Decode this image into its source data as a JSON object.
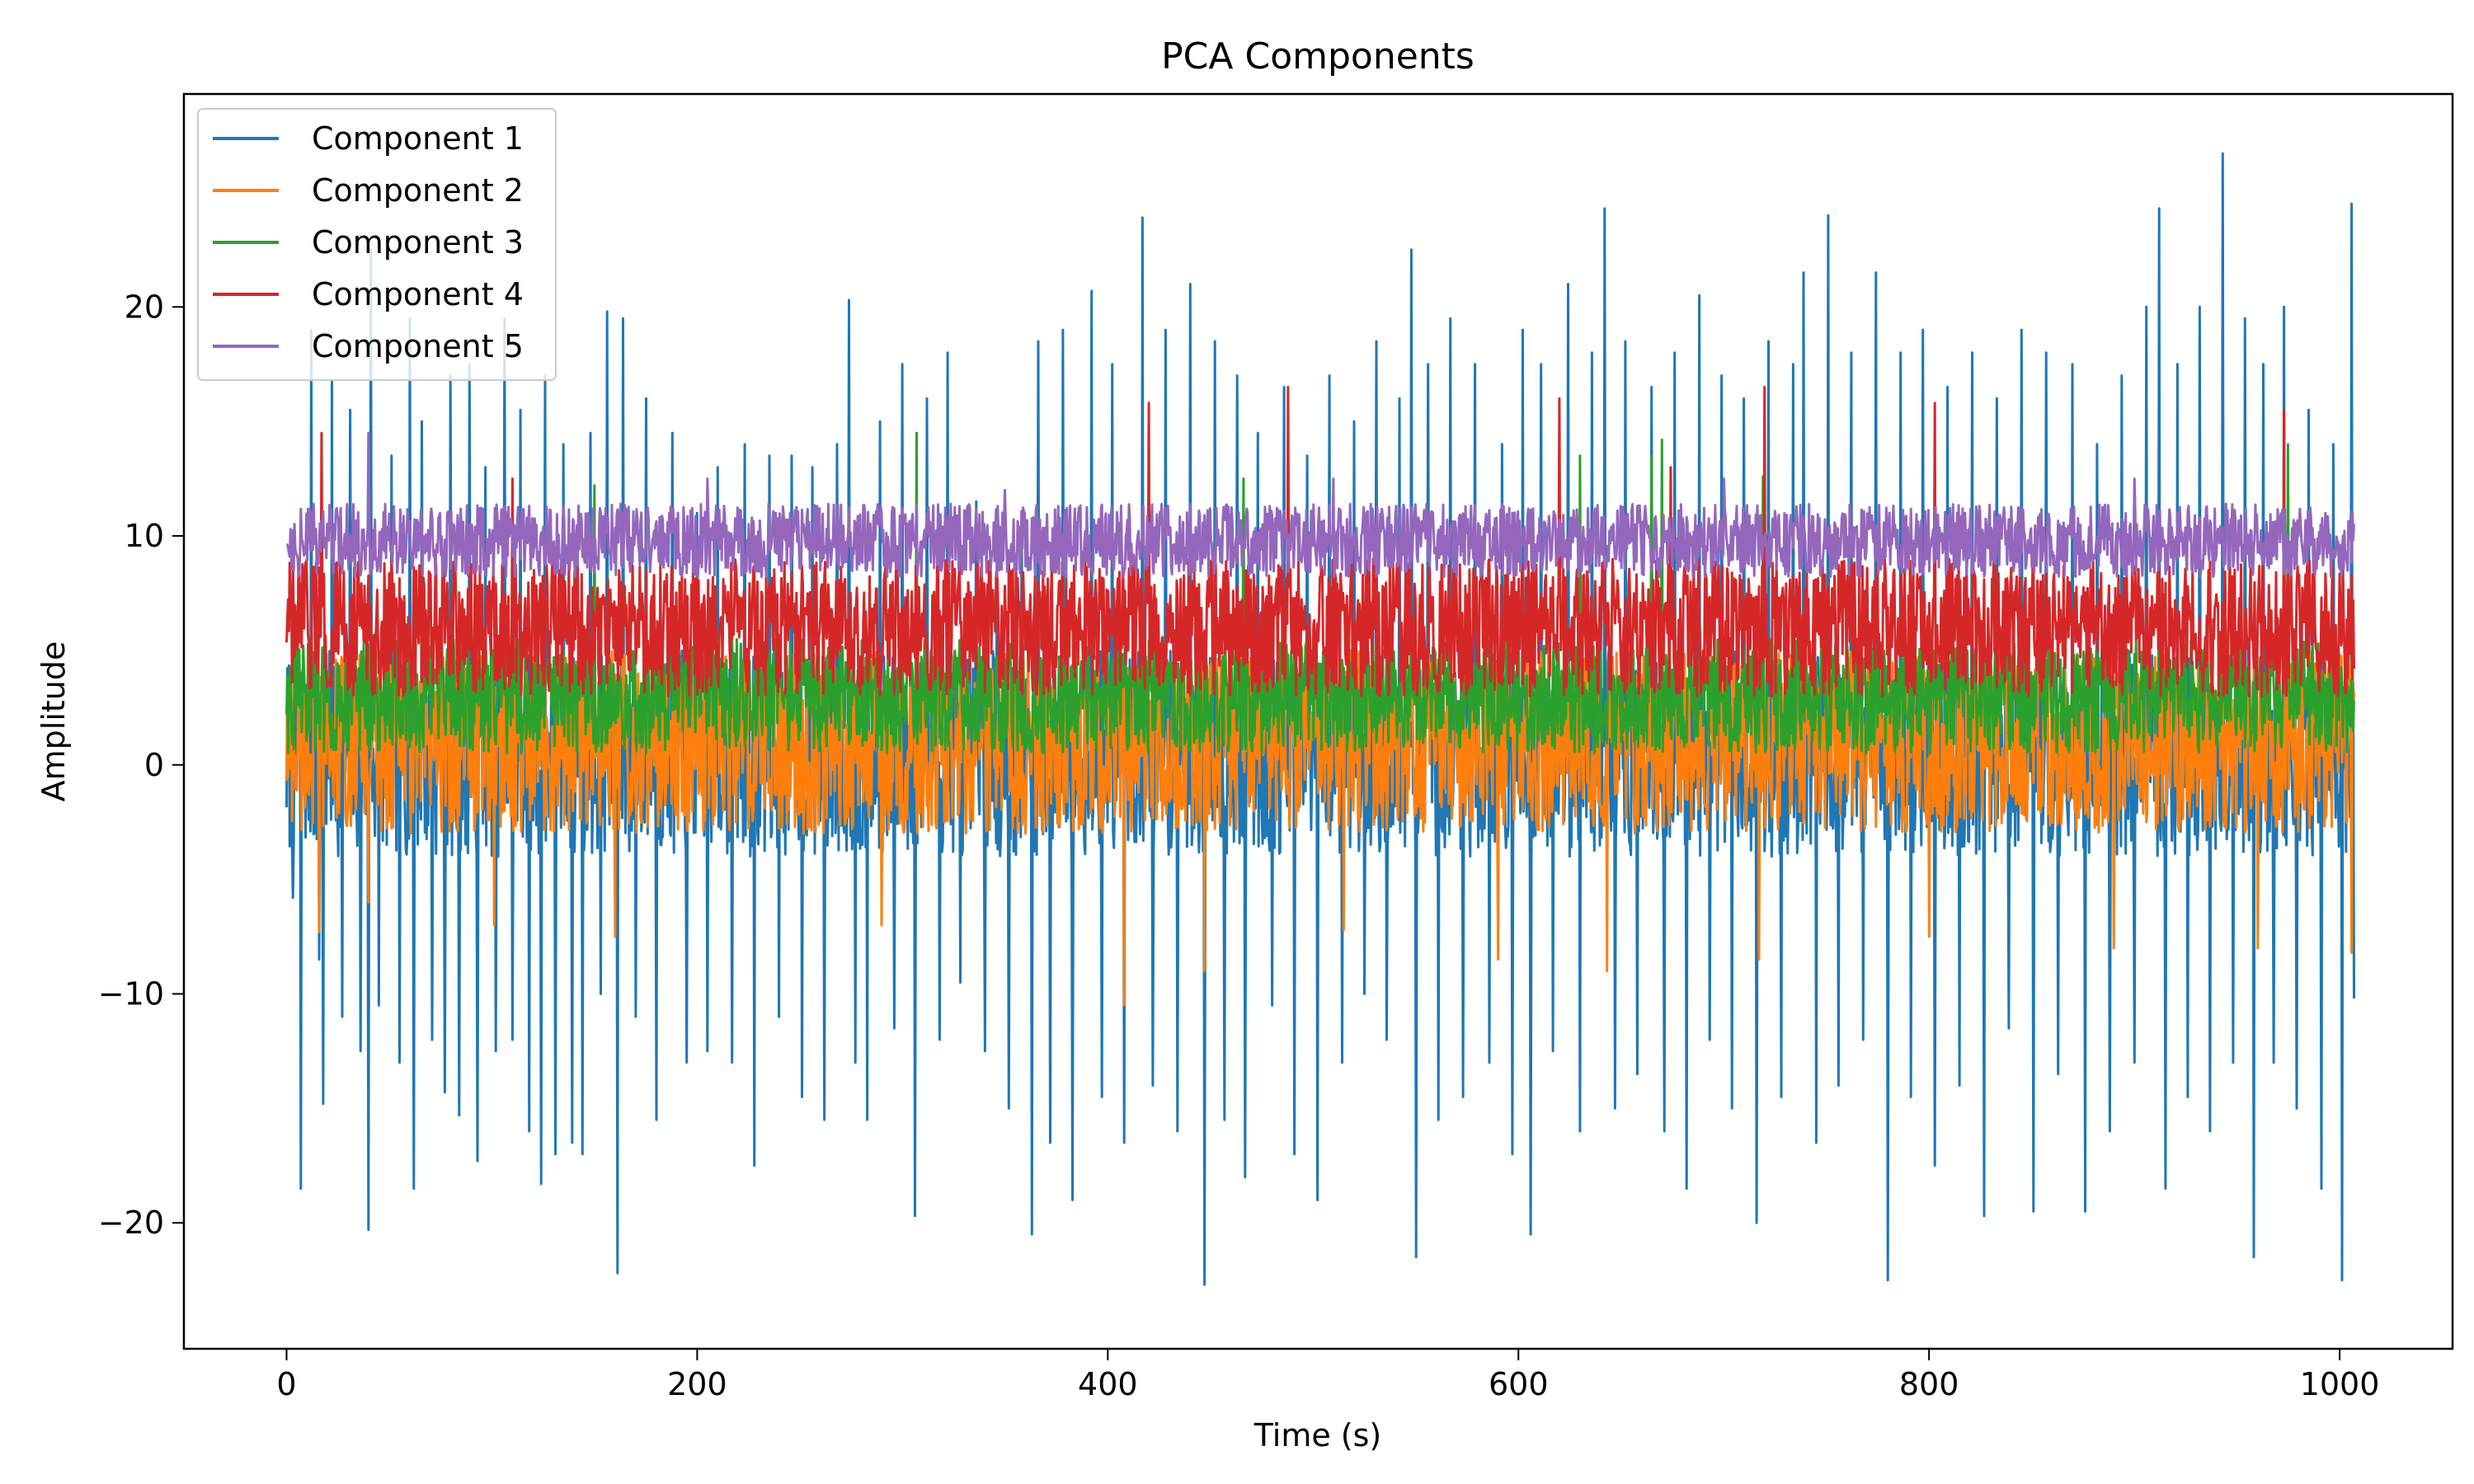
{
  "chart_data": {
    "type": "line",
    "title": "PCA Components",
    "xlabel": "Time (s)",
    "ylabel": "Amplitude",
    "xlim": [
      -50,
      1055
    ],
    "ylim": [
      -25.5,
      29.3
    ],
    "xticks": [
      0,
      200,
      400,
      600,
      800,
      1000
    ],
    "xtick_labels": [
      "0",
      "200",
      "400",
      "600",
      "800",
      "1000"
    ],
    "yticks": [
      -20,
      -10,
      0,
      10,
      20
    ],
    "ytick_labels": [
      "−20",
      "−10",
      "0",
      "10",
      "20"
    ],
    "grid": false,
    "legend_position": "upper-left",
    "x_range": [
      0,
      1007
    ],
    "series": [
      {
        "name": "Component 1",
        "color": "#1f77b4",
        "baseline": 0.5,
        "band": [
          -4.5,
          4.5
        ],
        "spikes": [
          [
            3,
            -5.8
          ],
          [
            7,
            -18.5
          ],
          [
            12,
            19.0
          ],
          [
            16,
            -8.5
          ],
          [
            18,
            -14.8
          ],
          [
            22,
            16.8
          ],
          [
            27,
            -11.0
          ],
          [
            31,
            15.5
          ],
          [
            36,
            -12.5
          ],
          [
            40,
            -20.3
          ],
          [
            41,
            22.5
          ],
          [
            45,
            -10.5
          ],
          [
            51,
            13.5
          ],
          [
            55,
            -13.0
          ],
          [
            60,
            19.5
          ],
          [
            62,
            -18.5
          ],
          [
            66,
            15.0
          ],
          [
            71,
            -12.0
          ],
          [
            77,
            -14.3
          ],
          [
            80,
            17.0
          ],
          [
            84,
            -15.3
          ],
          [
            89,
            17.5
          ],
          [
            93,
            -17.3
          ],
          [
            97,
            13.0
          ],
          [
            102,
            -12.5
          ],
          [
            106,
            19.5
          ],
          [
            110,
            -12.0
          ],
          [
            114,
            15.5
          ],
          [
            118,
            -16.0
          ],
          [
            124,
            -18.3
          ],
          [
            126,
            17.0
          ],
          [
            131,
            -17.0
          ],
          [
            135,
            14.0
          ],
          [
            139,
            -16.5
          ],
          [
            144,
            -17.0
          ],
          [
            148,
            14.5
          ],
          [
            153,
            -10.0
          ],
          [
            156,
            19.8
          ],
          [
            161,
            -22.2
          ],
          [
            164,
            19.5
          ],
          [
            170,
            -11.0
          ],
          [
            175,
            16.0
          ],
          [
            180,
            -15.5
          ],
          [
            188,
            14.5
          ],
          [
            195,
            -13.0
          ],
          [
            200,
            11.0
          ],
          [
            205,
            -12.5
          ],
          [
            210,
            13.0
          ],
          [
            217,
            -13.0
          ],
          [
            223,
            14.0
          ],
          [
            228,
            -17.5
          ],
          [
            235,
            13.5
          ],
          [
            240,
            -11.0
          ],
          [
            246,
            13.5
          ],
          [
            251,
            -14.5
          ],
          [
            256,
            13.0
          ],
          [
            262,
            -15.5
          ],
          [
            268,
            14.0
          ],
          [
            274,
            20.3
          ],
          [
            277,
            -13.0
          ],
          [
            283,
            -15.5
          ],
          [
            289,
            15.0
          ],
          [
            296,
            -11.5
          ],
          [
            300,
            17.5
          ],
          [
            306,
            -19.7
          ],
          [
            312,
            16.0
          ],
          [
            318,
            -12.0
          ],
          [
            322,
            18.0
          ],
          [
            328,
            -9.5
          ],
          [
            336,
            11.5
          ],
          [
            340,
            -12.5
          ],
          [
            346,
            10.0
          ],
          [
            352,
            -15.0
          ],
          [
            358,
            11.0
          ],
          [
            363,
            -20.5
          ],
          [
            366,
            18.5
          ],
          [
            372,
            -16.5
          ],
          [
            378,
            19.0
          ],
          [
            383,
            -19.0
          ],
          [
            392,
            20.7
          ],
          [
            397,
            -14.5
          ],
          [
            402,
            17.5
          ],
          [
            408,
            -16.5
          ],
          [
            417,
            23.9
          ],
          [
            422,
            -14.0
          ],
          [
            428,
            19.0
          ],
          [
            434,
            -16.0
          ],
          [
            440,
            21.0
          ],
          [
            447,
            -22.7
          ],
          [
            452,
            18.5
          ],
          [
            457,
            -15.5
          ],
          [
            463,
            17.0
          ],
          [
            467,
            -18.0
          ],
          [
            473,
            14.5
          ],
          [
            480,
            -10.5
          ],
          [
            486,
            16.5
          ],
          [
            491,
            -17.0
          ],
          [
            497,
            13.5
          ],
          [
            502,
            -19.0
          ],
          [
            508,
            17.0
          ],
          [
            514,
            -13.0
          ],
          [
            520,
            15.0
          ],
          [
            525,
            -10.0
          ],
          [
            531,
            18.5
          ],
          [
            536,
            -12.0
          ],
          [
            542,
            16.0
          ],
          [
            548,
            22.5
          ],
          [
            550,
            -21.5
          ],
          [
            556,
            17.5
          ],
          [
            561,
            -15.5
          ],
          [
            567,
            19.5
          ],
          [
            573,
            -14.5
          ],
          [
            579,
            17.5
          ],
          [
            586,
            -13.0
          ],
          [
            592,
            14.0
          ],
          [
            597,
            -17.0
          ],
          [
            602,
            19.0
          ],
          [
            606,
            -20.5
          ],
          [
            611,
            17.5
          ],
          [
            617,
            -12.5
          ],
          [
            624,
            21.0
          ],
          [
            630,
            -16.0
          ],
          [
            636,
            18.0
          ],
          [
            642,
            24.3
          ],
          [
            647,
            -15.0
          ],
          [
            652,
            18.5
          ],
          [
            658,
            -13.5
          ],
          [
            665,
            16.5
          ],
          [
            671,
            -16.0
          ],
          [
            676,
            18.0
          ],
          [
            682,
            -18.5
          ],
          [
            688,
            20.5
          ],
          [
            693,
            -12.0
          ],
          [
            699,
            17.0
          ],
          [
            704,
            -15.0
          ],
          [
            710,
            16.0
          ],
          [
            716,
            -20.0
          ],
          [
            722,
            18.5
          ],
          [
            728,
            -14.5
          ],
          [
            734,
            17.5
          ],
          [
            739,
            21.5
          ],
          [
            745,
            -16.5
          ],
          [
            751,
            24.0
          ],
          [
            756,
            -14.0
          ],
          [
            762,
            18.0
          ],
          [
            768,
            -12.0
          ],
          [
            774,
            21.5
          ],
          [
            780,
            -22.5
          ],
          [
            786,
            18.0
          ],
          [
            791,
            -14.5
          ],
          [
            797,
            19.0
          ],
          [
            803,
            -17.5
          ],
          [
            809,
            16.5
          ],
          [
            815,
            -14.0
          ],
          [
            821,
            18.0
          ],
          [
            827,
            -19.7
          ],
          [
            833,
            16.0
          ],
          [
            839,
            -11.5
          ],
          [
            845,
            19.0
          ],
          [
            851,
            -19.5
          ],
          [
            857,
            18.0
          ],
          [
            863,
            -13.5
          ],
          [
            870,
            17.5
          ],
          [
            876,
            -19.5
          ],
          [
            882,
            14.0
          ],
          [
            888,
            -16.0
          ],
          [
            894,
            17.0
          ],
          [
            900,
            -13.0
          ],
          [
            906,
            20.0
          ],
          [
            912,
            24.3
          ],
          [
            915,
            -18.5
          ],
          [
            921,
            17.5
          ],
          [
            926,
            -14.5
          ],
          [
            932,
            20.0
          ],
          [
            937,
            -16.0
          ],
          [
            943,
            26.7
          ],
          [
            948,
            -13.0
          ],
          [
            954,
            19.5
          ],
          [
            958,
            -21.5
          ],
          [
            963,
            17.5
          ],
          [
            968,
            -13.0
          ],
          [
            973,
            20.0
          ],
          [
            979,
            -15.0
          ],
          [
            985,
            15.5
          ],
          [
            991,
            -18.5
          ],
          [
            997,
            14.0
          ],
          [
            1001,
            -22.5
          ],
          [
            1006,
            24.5
          ],
          [
            1007,
            -10.2
          ]
        ]
      },
      {
        "name": "Component 2",
        "color": "#ff7f0e",
        "baseline": 1.0,
        "band": [
          -4.0,
          4.0
        ],
        "spikes": [
          [
            16,
            -7.3
          ],
          [
            40,
            -6.0
          ],
          [
            101,
            -7.0
          ],
          [
            160,
            -7.5
          ],
          [
            290,
            -7.0
          ],
          [
            408,
            -10.5
          ],
          [
            447,
            -9.0
          ],
          [
            515,
            -7.2
          ],
          [
            590,
            -8.5
          ],
          [
            643,
            -9.0
          ],
          [
            717,
            -8.5
          ],
          [
            800,
            -7.5
          ],
          [
            890,
            -8.0
          ],
          [
            960,
            -8.0
          ],
          [
            1006,
            -8.2
          ]
        ]
      },
      {
        "name": "Component 3",
        "color": "#2ca02c",
        "baseline": 3.0,
        "band": [
          -2.5,
          2.5
        ],
        "spikes": [
          [
            150,
            12.2
          ],
          [
            307,
            14.5
          ],
          [
            466,
            12.5
          ],
          [
            630,
            13.5
          ],
          [
            665,
            13.5
          ],
          [
            670,
            14.2
          ],
          [
            719,
            12.6
          ],
          [
            975,
            14.0
          ]
        ]
      },
      {
        "name": "Component 4",
        "color": "#d62728",
        "baseline": 6.0,
        "band": [
          -3.0,
          3.0
        ],
        "spikes": [
          [
            17,
            14.5
          ],
          [
            110,
            12.5
          ],
          [
            420,
            15.8
          ],
          [
            488,
            16.5
          ],
          [
            620,
            16.0
          ],
          [
            674,
            13.0
          ],
          [
            720,
            16.5
          ],
          [
            803,
            15.8
          ],
          [
            973,
            15.5
          ]
        ]
      },
      {
        "name": "Component 5",
        "color": "#9467bd",
        "baseline": 9.8,
        "band": [
          -1.6,
          1.6
        ],
        "spikes": [
          [
            40,
            14.5
          ],
          [
            205,
            12.5
          ],
          [
            350,
            12.0
          ],
          [
            510,
            12.5
          ],
          [
            700,
            12.5
          ],
          [
            900,
            12.5
          ]
        ]
      }
    ]
  }
}
